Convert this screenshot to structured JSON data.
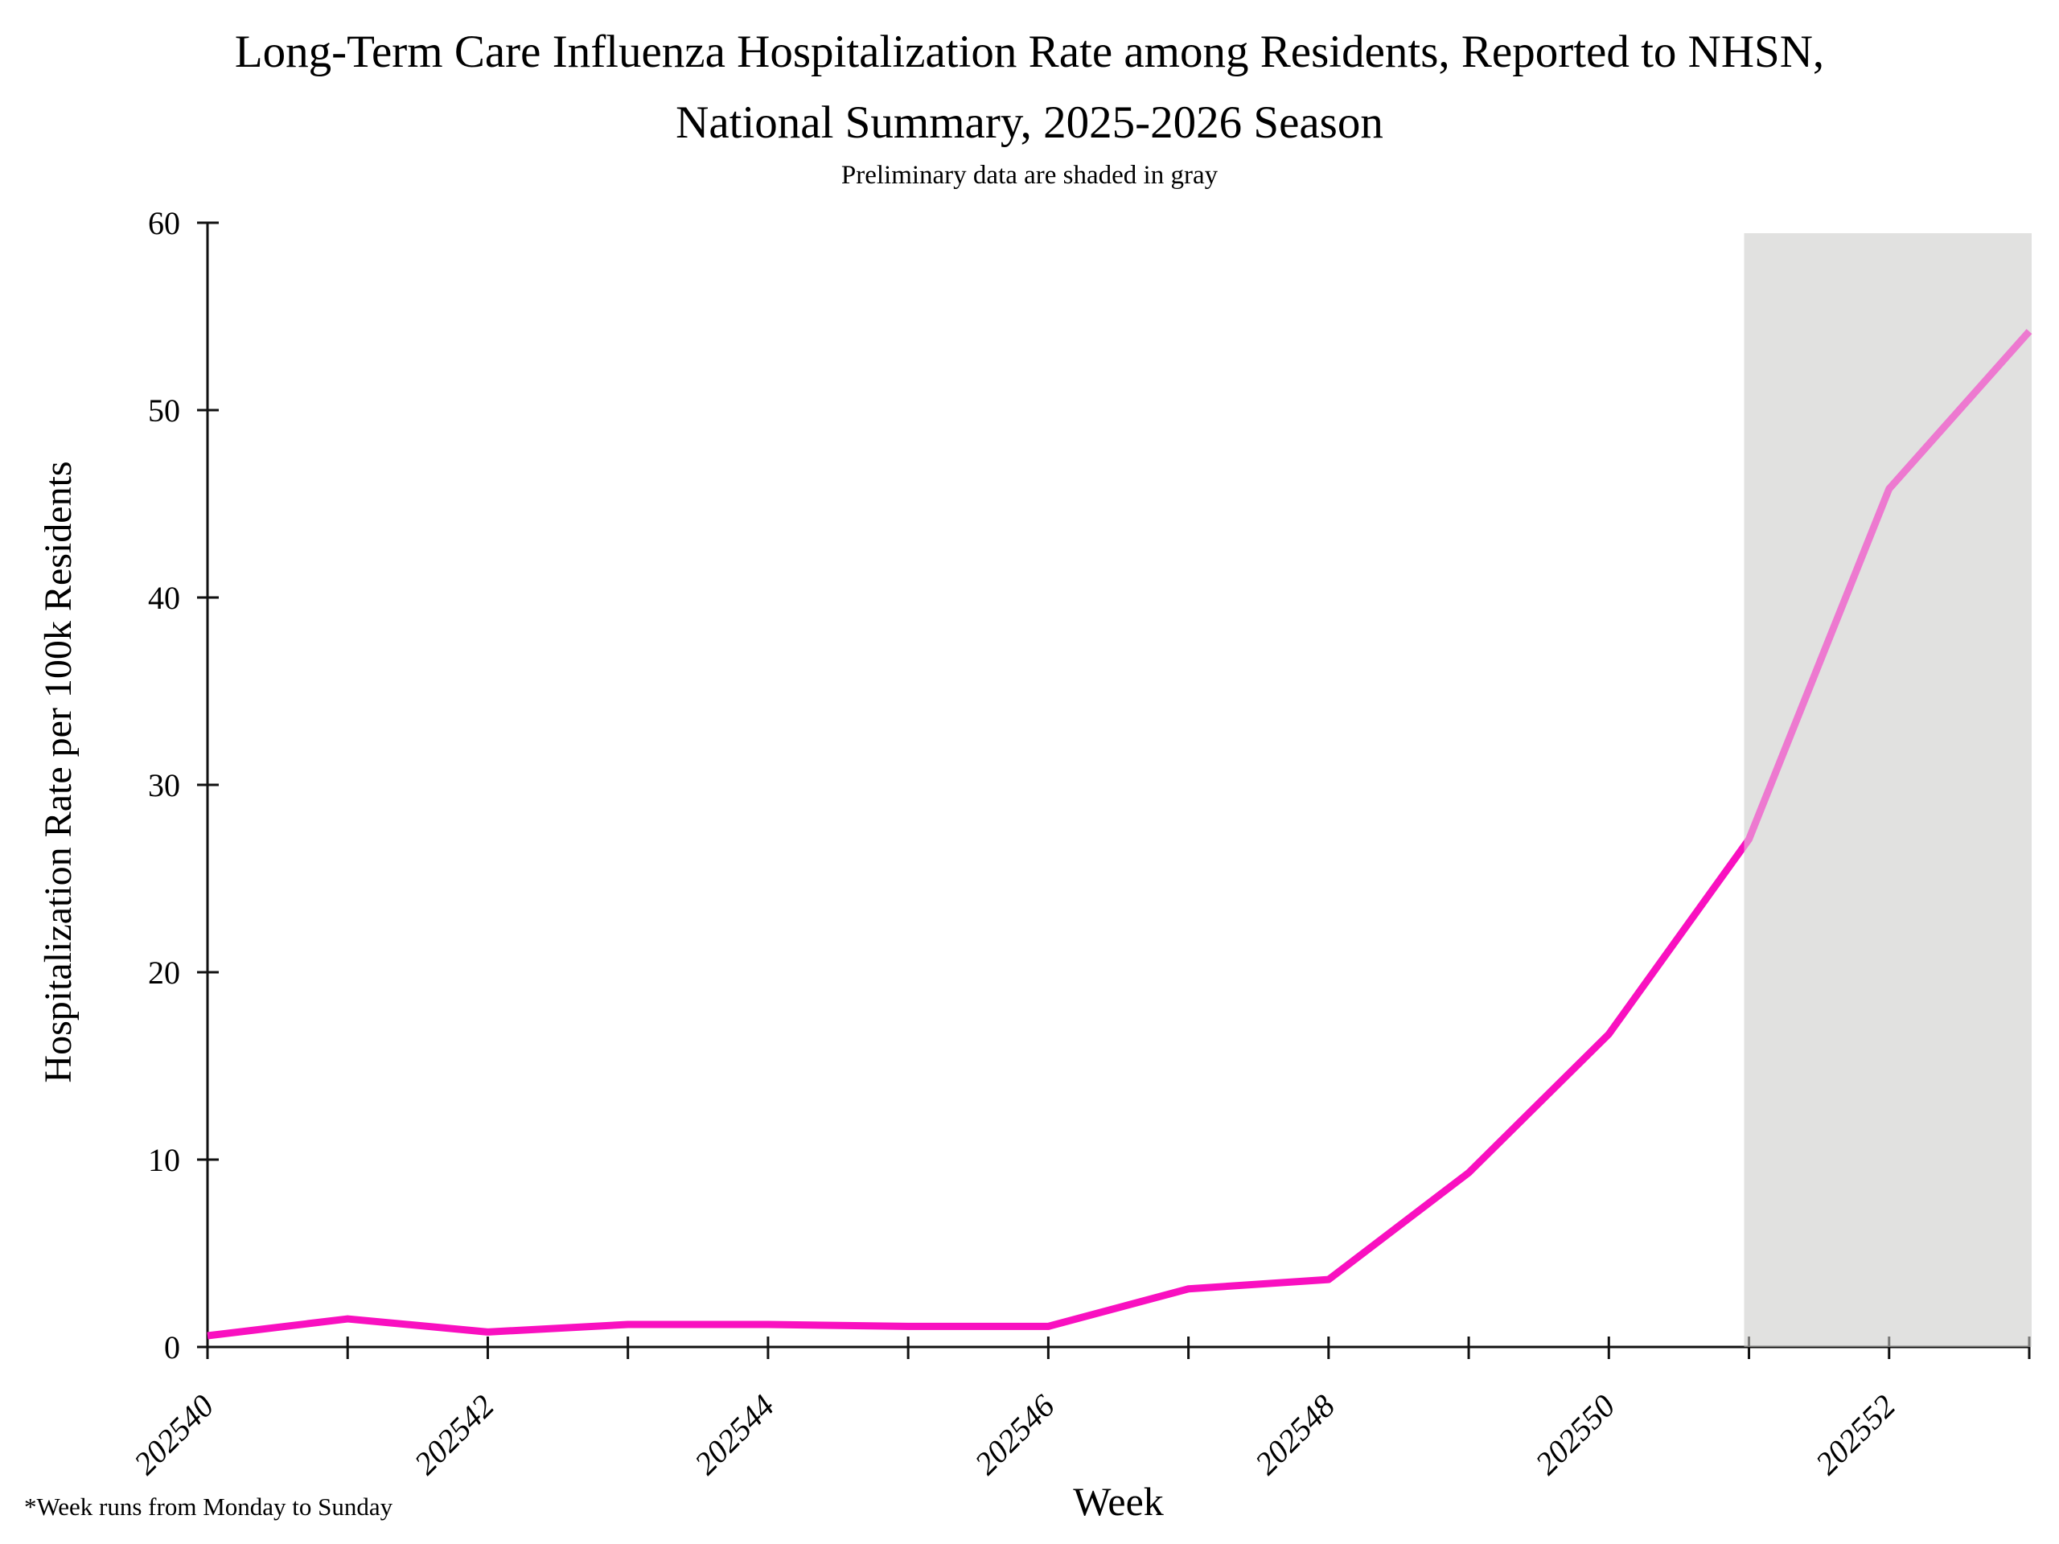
{
  "title_line1": "Long-Term Care Influenza Hospitalization Rate among Residents, Reported to NHSN,",
  "title_line2": "National Summary, 2025-2026 Season",
  "subtitle": "Preliminary data are shaded in gray",
  "footnote": "*Week runs from Monday to Sunday",
  "chart_data": {
    "type": "line",
    "title": "Long-Term Care Influenza Hospitalization Rate among Residents, Reported to NHSN, National Summary, 2025-2026 Season",
    "subtitle": "Preliminary data are shaded in gray",
    "xlabel": "Week",
    "ylabel": "Hospitalization Rate per 100k Residents",
    "x": [
      202540,
      202541,
      202542,
      202543,
      202544,
      202545,
      202546,
      202547,
      202548,
      202549,
      202550,
      202551,
      202552,
      202553
    ],
    "values": [
      0.6,
      1.5,
      0.8,
      1.2,
      1.2,
      1.1,
      1.1,
      3.1,
      3.6,
      9.3,
      16.7,
      27.1,
      45.8,
      54.2
    ],
    "xlim": [
      202540,
      202553
    ],
    "ylim": [
      0,
      60
    ],
    "yticks": [
      0,
      10,
      20,
      30,
      40,
      50,
      60
    ],
    "xticks_labeled": [
      202540,
      202542,
      202544,
      202546,
      202548,
      202550,
      202552
    ],
    "grid": "off",
    "legend": "none",
    "line_color": "#F910C0",
    "axis_color": "#111111",
    "preliminary_region": {
      "start": 202551,
      "end": 202553,
      "note": "Preliminary data are shaded in gray",
      "fill": "#E1E1E0",
      "overlay": "rgba(225,225,223,0.5)"
    },
    "footnote": "*Week runs from Monday to Sunday"
  }
}
